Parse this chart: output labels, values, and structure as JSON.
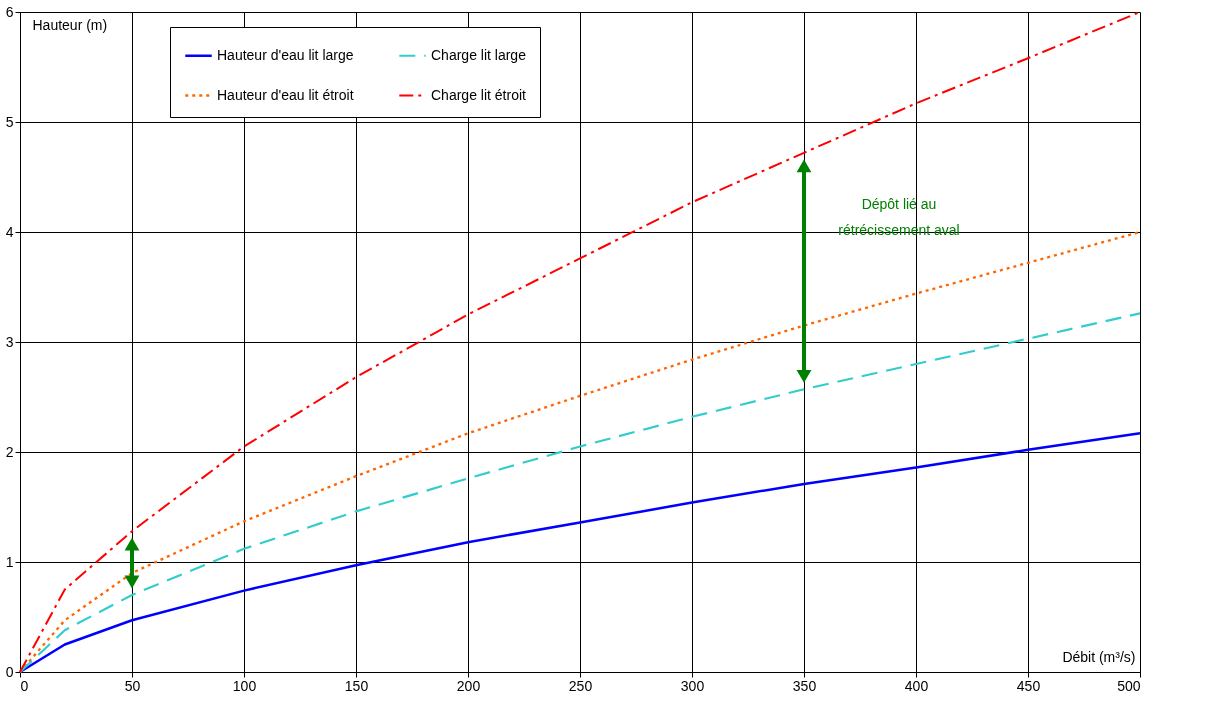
{
  "chart_data": {
    "type": "line",
    "xlabel": "Débit (m³/s)",
    "ylabel": "Hauteur (m)",
    "x": [
      0,
      20,
      50,
      100,
      150,
      200,
      250,
      300,
      350,
      400,
      450,
      500
    ],
    "series": [
      {
        "name": "Hauteur d'eau lit large",
        "color": "#0000ff",
        "line_style": "solid",
        "values": [
          0,
          0.25,
          0.47,
          0.74,
          0.97,
          1.18,
          1.36,
          1.54,
          1.71,
          1.86,
          2.02,
          2.17
        ]
      },
      {
        "name": "Hauteur d'eau lit étroit",
        "color": "#ff6600",
        "line_style": "dotted",
        "values": [
          0,
          0.47,
          0.9,
          1.37,
          1.78,
          2.17,
          2.51,
          2.84,
          3.15,
          3.44,
          3.72,
          4.0
        ]
      },
      {
        "name": "Charge lit large",
        "color": "#33cccc",
        "line_style": "dashed",
        "values": [
          0,
          0.38,
          0.7,
          1.12,
          1.46,
          1.76,
          2.05,
          2.32,
          2.57,
          2.8,
          3.03,
          3.26
        ]
      },
      {
        "name": "Charge lit étroit",
        "color": "#ff0000",
        "line_style": "dashdot",
        "values": [
          0,
          0.75,
          1.28,
          2.05,
          2.68,
          3.25,
          3.76,
          4.27,
          4.72,
          5.17,
          5.58,
          6.0
        ]
      }
    ],
    "xlim": [
      0,
      500
    ],
    "xticks": [
      0,
      50,
      100,
      150,
      200,
      250,
      300,
      350,
      400,
      450,
      500
    ],
    "ylim": [
      0,
      6
    ],
    "yticks": [
      {
        "value": 0,
        "label": "0"
      },
      {
        "value": 1,
        "label": "1"
      },
      {
        "value": 2,
        "label": "2"
      },
      {
        "value": 3,
        "label": "3"
      },
      {
        "value": 4,
        "label": "4"
      },
      {
        "value": 5,
        "label": "5"
      },
      {
        "value": 6,
        "label": "6"
      }
    ],
    "grid": true,
    "legend": "top left",
    "marker": "none",
    "annotations": [
      "Dépôt lié au rétrécissement  aval"
    ]
  }
}
